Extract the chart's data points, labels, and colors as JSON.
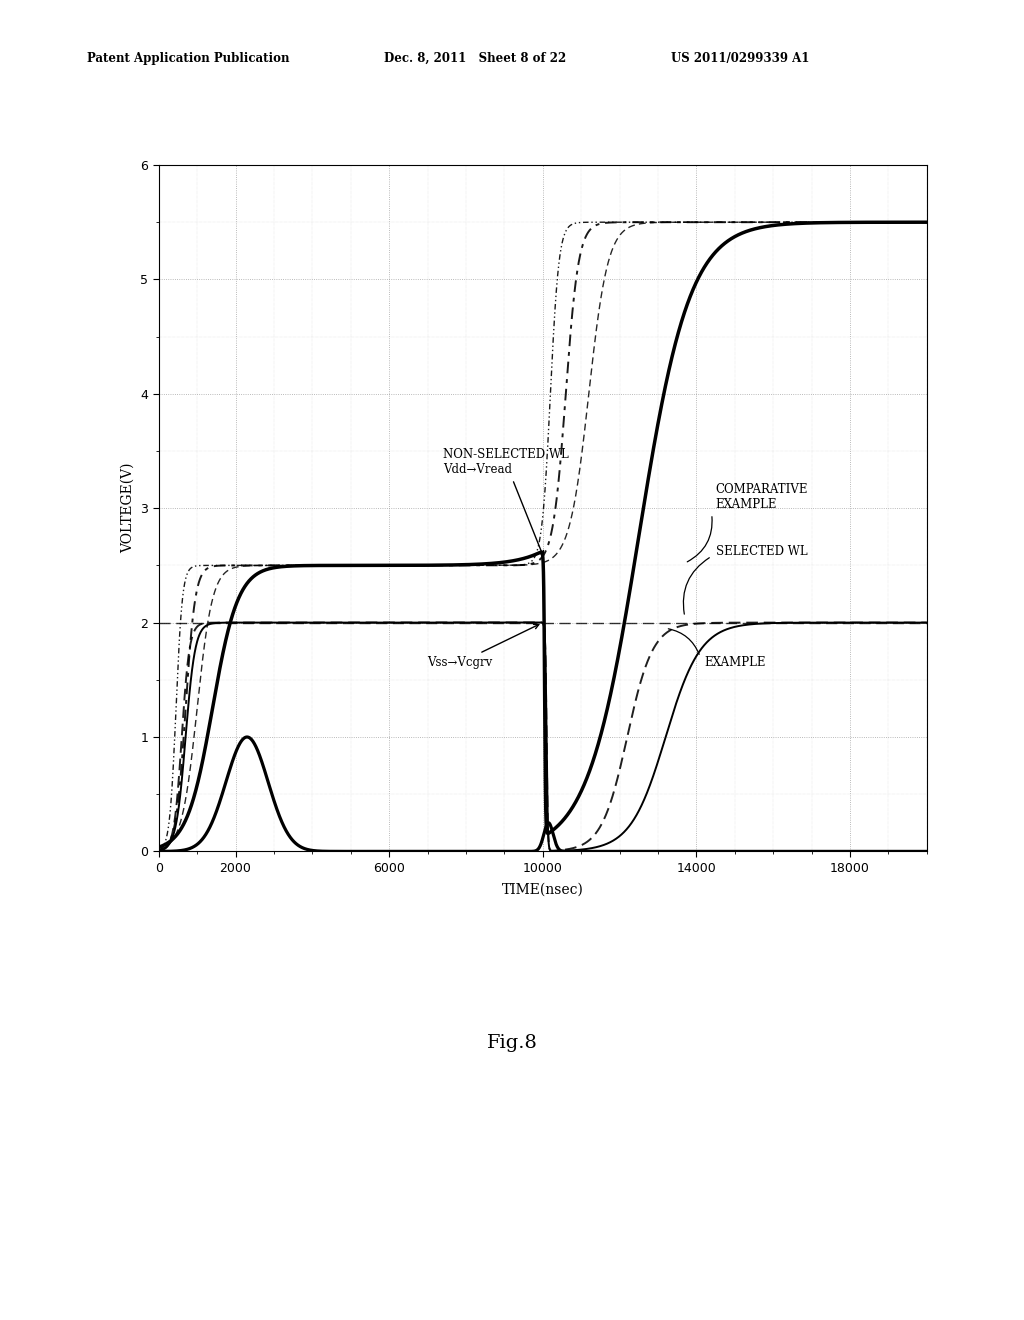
{
  "title": "",
  "xlabel": "TIME(nsec)",
  "ylabel": "VOLTEGE(V)",
  "xlim": [
    0,
    20000
  ],
  "ylim": [
    0,
    6
  ],
  "xticks": [
    0,
    2000,
    6000,
    10000,
    14000,
    18000
  ],
  "yticks": [
    0,
    1,
    2,
    3,
    4,
    5,
    6
  ],
  "header_left": "Patent Application Publication",
  "header_mid": "Dec. 8, 2011   Sheet 8 of 22",
  "header_right": "US 2011/0299339 A1",
  "fig_label": "Fig.8",
  "ann1_text": "NON-SELECTED WL\nVdd→Vread",
  "ann2_text": "Vss→Vcgrv",
  "ann3_text": "COMPARATIVE\nEXAMPLE",
  "ann4_text": "SELECTED WL",
  "ann5_text": "EXAMPLE",
  "background_color": "#ffffff",
  "line_color": "#000000",
  "vss_vcgrv_level": 2.0,
  "vread_level": 2.5,
  "vhigh_level": 5.5
}
